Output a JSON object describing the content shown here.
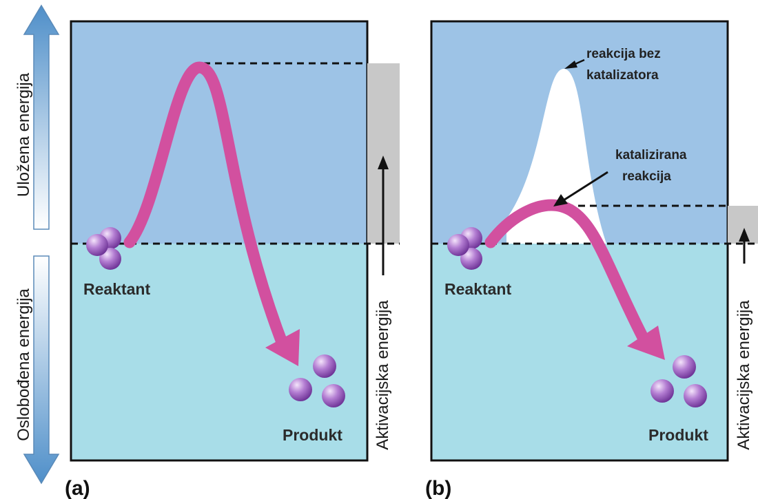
{
  "colors": {
    "upper_region": "#9dc3e6",
    "lower_region": "#a8dde8",
    "reaction_path": "#d2509f",
    "molecule": "#8b4fb2",
    "activation_bar": "#c8c8c8",
    "frame": "#111111"
  },
  "axis": {
    "energy_in_label": "Uložena energija",
    "energy_out_label": "Oslobođena energija"
  },
  "panels": [
    {
      "tag": "(a)",
      "reactant_label": "Reaktant",
      "product_label": "Produkt",
      "activation_label": "Aktivacijska energija"
    },
    {
      "tag": "(b)",
      "reactant_label": "Reaktant",
      "product_label": "Produkt",
      "activation_label": "Aktivacijska energija",
      "uncatalyzed_label_line1": "reakcija bez",
      "uncatalyzed_label_line2": "katalizatora",
      "catalyzed_label_line1": "katalizirana",
      "catalyzed_label_line2": "reakcija"
    }
  ]
}
